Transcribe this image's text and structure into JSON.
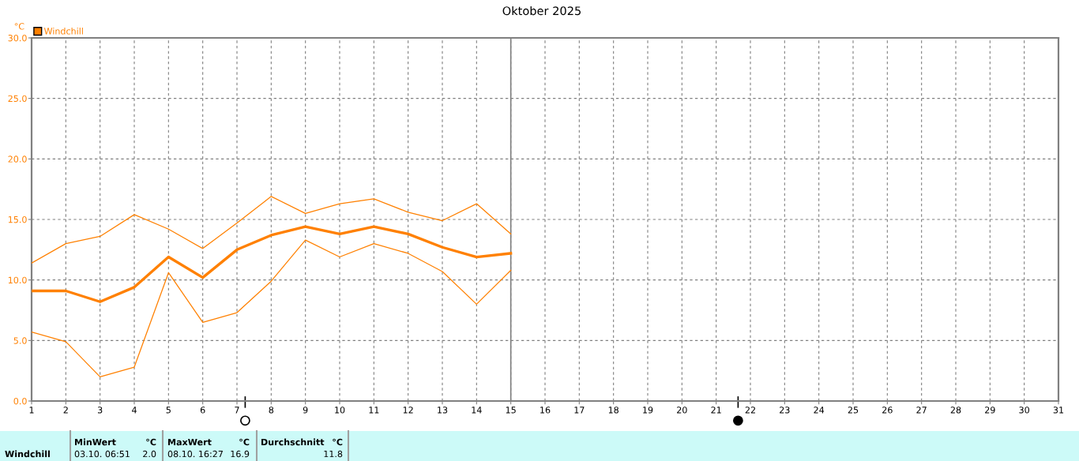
{
  "chart_data": {
    "type": "line",
    "title": "Oktober 2025",
    "ylabel": "°C",
    "x": [
      1,
      2,
      3,
      4,
      5,
      6,
      7,
      8,
      9,
      10,
      11,
      12,
      13,
      14,
      15
    ],
    "series": [
      {
        "color": "#ff8000",
        "values": [
          11.4,
          13.0,
          13.6,
          15.4,
          14.2,
          12.6,
          14.7,
          16.9,
          15.5,
          16.3,
          16.7,
          15.6,
          14.9,
          16.3,
          13.8
        ]
      },
      {
        "name": "Windchill",
        "color": "#ff8000",
        "values": [
          9.1,
          9.1,
          8.2,
          9.4,
          11.9,
          10.2,
          12.5,
          13.7,
          14.4,
          13.8,
          14.4,
          13.8,
          12.7,
          11.9,
          12.2
        ]
      },
      {
        "color": "#ff8000",
        "values": [
          5.7,
          4.9,
          2.0,
          2.8,
          10.6,
          6.5,
          7.3,
          9.9,
          13.3,
          11.9,
          13.0,
          12.2,
          10.7,
          8.0,
          10.8
        ]
      }
    ],
    "xlim": [
      1,
      31
    ],
    "xticks": [
      1,
      2,
      3,
      4,
      5,
      6,
      7,
      8,
      9,
      10,
      11,
      12,
      13,
      14,
      15,
      16,
      17,
      18,
      19,
      20,
      21,
      22,
      23,
      24,
      25,
      26,
      27,
      28,
      29,
      30,
      31
    ],
    "ylim": [
      0,
      30
    ],
    "yticks": [
      {
        "value": 0,
        "label": "0.0"
      },
      {
        "value": 5,
        "label": "5.0"
      },
      {
        "value": 10,
        "label": "10.0"
      },
      {
        "value": 15,
        "label": "15.0"
      },
      {
        "value": 20,
        "label": "20.0"
      },
      {
        "value": 25,
        "label": "25.0"
      },
      {
        "value": 30,
        "label": "30.0"
      }
    ],
    "grid": true,
    "legend": "top left",
    "marker": "none",
    "line_style": "solid",
    "ref_lines": [
      {
        "axis": "x",
        "value": 15,
        "color": "#808080",
        "line_style": "solid"
      }
    ],
    "annotations": [
      "Windchill",
      "MinWert",
      "°C",
      "03.10. 06:51",
      "2.0",
      "MaxWert",
      "°C",
      "08.10. 16:27",
      "16.9",
      "Durchschnitt",
      "°C",
      "11.8"
    ]
  }
}
